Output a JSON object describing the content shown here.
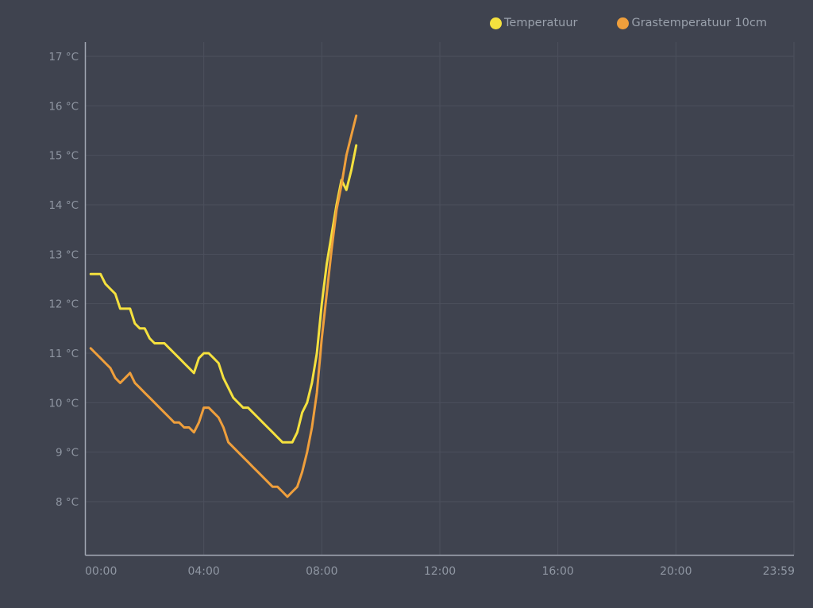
{
  "chart": {
    "background_color": "#3f434f",
    "grid_color": "#4c505d",
    "axis_color": "#a2a8b4",
    "tick_label_color": "#8f96a2",
    "legend_text_color": "#9aa1ac",
    "legend": [
      {
        "label": "Temperatuur",
        "color": "#f5e13e"
      },
      {
        "label": "Grastemperatuur 10cm",
        "color": "#ef9f3c"
      }
    ]
  },
  "chart_data": {
    "type": "line",
    "legend_position": "top-right",
    "grid": true,
    "ylim": [
      8,
      17
    ],
    "y_tick_labels": [
      "8 °C",
      "9 °C",
      "10 °C",
      "11 °C",
      "12 °C",
      "13 °C",
      "14 °C",
      "15 °C",
      "16 °C",
      "17 °C"
    ],
    "y_tick_values": [
      8,
      9,
      10,
      11,
      12,
      13,
      14,
      15,
      16,
      17
    ],
    "x_tick_labels": [
      "00:00",
      "04:00",
      "08:00",
      "12:00",
      "16:00",
      "20:00",
      "23:59"
    ],
    "x_tick_minutes": [
      0,
      240,
      480,
      720,
      960,
      1200,
      1439
    ],
    "x_range_minutes": [
      0,
      1440
    ],
    "x": [
      "00:10",
      "00:20",
      "00:30",
      "00:40",
      "00:50",
      "01:00",
      "01:10",
      "01:20",
      "01:30",
      "01:40",
      "01:50",
      "02:00",
      "02:10",
      "02:20",
      "02:30",
      "02:40",
      "02:50",
      "03:00",
      "03:10",
      "03:20",
      "03:30",
      "03:40",
      "03:50",
      "04:00",
      "04:10",
      "04:20",
      "04:30",
      "04:40",
      "04:50",
      "05:00",
      "05:10",
      "05:20",
      "05:30",
      "05:40",
      "05:50",
      "06:00",
      "06:10",
      "06:20",
      "06:30",
      "06:40",
      "06:50",
      "07:00",
      "07:10",
      "07:20",
      "07:30",
      "07:40",
      "07:50",
      "08:00",
      "08:10",
      "08:20",
      "08:30",
      "08:40",
      "08:50",
      "09:00",
      "09:10"
    ],
    "series": [
      {
        "name": "Temperatuur",
        "color": "#f5e13e",
        "values": [
          12.6,
          12.6,
          12.6,
          12.4,
          12.3,
          12.2,
          11.9,
          11.9,
          11.9,
          11.6,
          11.5,
          11.5,
          11.3,
          11.2,
          11.2,
          11.2,
          11.1,
          11.0,
          10.9,
          10.8,
          10.7,
          10.6,
          10.9,
          11.0,
          11.0,
          10.9,
          10.8,
          10.5,
          10.3,
          10.1,
          10.0,
          9.9,
          9.9,
          9.8,
          9.7,
          9.6,
          9.5,
          9.4,
          9.3,
          9.2,
          9.2,
          9.2,
          9.4,
          9.8,
          10.0,
          10.4,
          11.0,
          12.0,
          12.8,
          13.4,
          14.0,
          14.5,
          14.3,
          14.7,
          15.2
        ]
      },
      {
        "name": "Grastemperatuur 10cm",
        "color": "#ef9f3c",
        "values": [
          11.1,
          11.0,
          10.9,
          10.8,
          10.7,
          10.5,
          10.4,
          10.5,
          10.6,
          10.4,
          10.3,
          10.2,
          10.1,
          10.0,
          9.9,
          9.8,
          9.7,
          9.6,
          9.6,
          9.5,
          9.5,
          9.4,
          9.6,
          9.9,
          9.9,
          9.8,
          9.7,
          9.5,
          9.2,
          9.1,
          9.0,
          8.9,
          8.8,
          8.7,
          8.6,
          8.5,
          8.4,
          8.3,
          8.3,
          8.2,
          8.1,
          8.2,
          8.3,
          8.6,
          9.0,
          9.5,
          10.2,
          11.3,
          12.2,
          13.1,
          13.9,
          14.4,
          15.0,
          15.4,
          15.8
        ]
      }
    ]
  }
}
